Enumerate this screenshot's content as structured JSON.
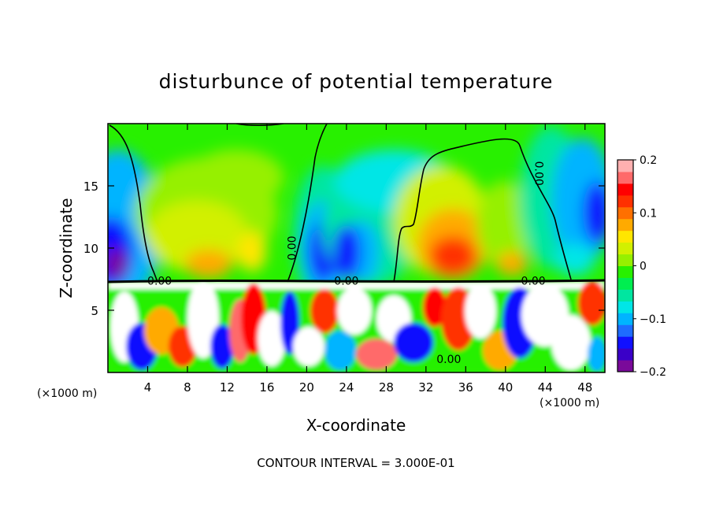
{
  "chart_data": {
    "type": "heatmap",
    "title": "disturbunce of potential temperature",
    "xlabel": "X-coordinate",
    "ylabel": "Z-coordinate",
    "x_unit": "(×1000 m)",
    "x_unit_right": "(×1000 m)",
    "footer": "CONTOUR INTERVAL = 3.000E-01",
    "xlim": [
      0,
      50
    ],
    "ylim": [
      0,
      20
    ],
    "x_ticks": [
      4,
      8,
      12,
      16,
      20,
      24,
      28,
      32,
      36,
      40,
      44,
      48
    ],
    "x_tick_labels": [
      "4",
      "8",
      "12",
      "16",
      "20",
      "24",
      "28",
      "32",
      "36",
      "40",
      "44",
      "48"
    ],
    "y_ticks": [
      5,
      10,
      15
    ],
    "y_tick_labels": [
      "5",
      "10",
      "15"
    ],
    "colorbar": {
      "range": [
        -0.2,
        0.2
      ],
      "tick_labels": [
        "0.2",
        "0.1",
        "0",
        "−0.1",
        "−0.2"
      ],
      "tick_values": [
        0.2,
        0.1,
        0,
        -0.1,
        -0.2
      ],
      "colors": [
        "#7a0a9a",
        "#3a00c8",
        "#1010ff",
        "#1e6cff",
        "#00b4ff",
        "#00e6e6",
        "#00e6a0",
        "#00ee50",
        "#28f000",
        "#96f000",
        "#d2f000",
        "#ffe600",
        "#ffaa00",
        "#ff7000",
        "#ff3000",
        "#ff0000",
        "#ff6a6a",
        "#ffb0b0"
      ]
    },
    "contour_labels": [
      {
        "text": "0.00",
        "x": 5.2,
        "y": 7.3,
        "rotate": 0
      },
      {
        "text": "0.00",
        "x": 18.6,
        "y": 10.0,
        "rotate": -90
      },
      {
        "text": "0.00",
        "x": 24.0,
        "y": 7.3,
        "rotate": 0
      },
      {
        "text": "0.00",
        "x": 34.3,
        "y": 1.0,
        "rotate": 0
      },
      {
        "text": "0.00",
        "x": 43.3,
        "y": 16.0,
        "rotate": 90
      },
      {
        "text": "0.00",
        "x": 42.8,
        "y": 7.3,
        "rotate": 0
      }
    ]
  }
}
